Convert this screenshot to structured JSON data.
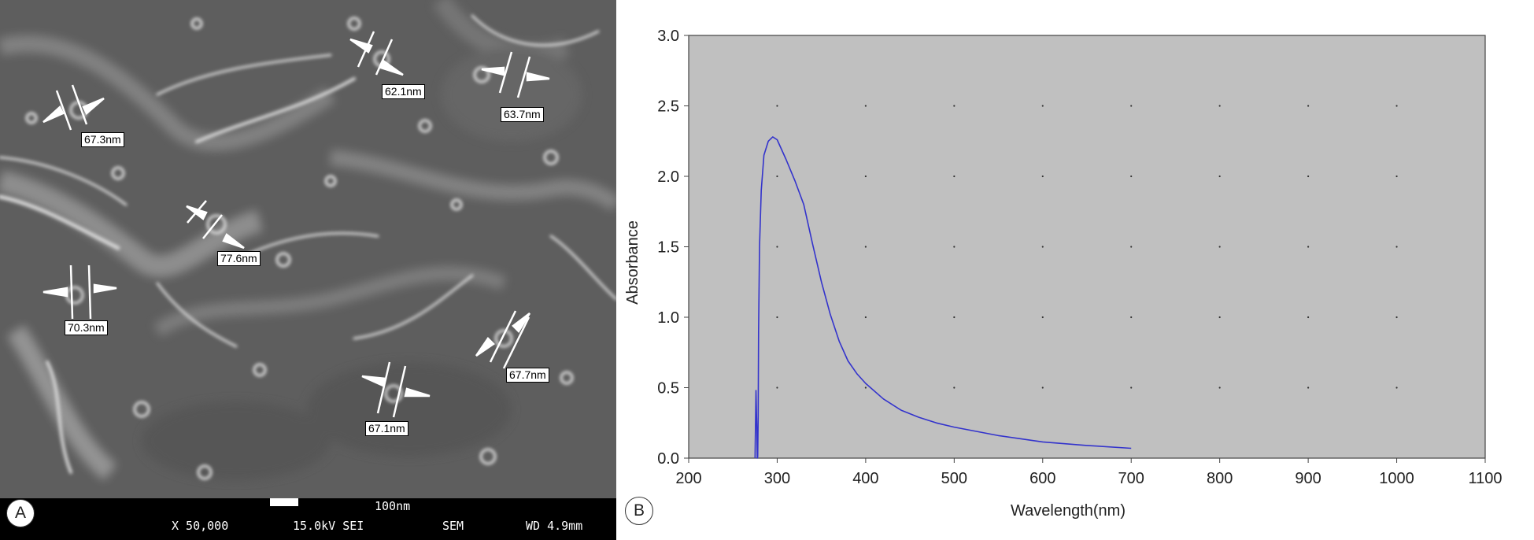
{
  "panel_a": {
    "letter": "A",
    "measurements": [
      {
        "label": "62.1nm"
      },
      {
        "label": "63.7nm"
      },
      {
        "label": "67.3nm"
      },
      {
        "label": "77.6nm"
      },
      {
        "label": "70.3nm"
      },
      {
        "label": "67.7nm"
      },
      {
        "label": "67.1nm"
      }
    ],
    "info_bar": {
      "magnification": "X 50,000",
      "voltage": "15.0kV SEI",
      "mode": "SEM",
      "scale": "100nm",
      "working_distance": "WD 4.9mm"
    }
  },
  "panel_b": {
    "letter": "B"
  },
  "chart_data": {
    "type": "line",
    "xlabel": "Wavelength(nm)",
    "ylabel": "Absorbance",
    "xlim": [
      200,
      1100
    ],
    "ylim": [
      0,
      3.0
    ],
    "x_ticks": [
      200,
      300,
      400,
      500,
      600,
      700,
      800,
      900,
      1000,
      1100
    ],
    "y_ticks": [
      "0.0",
      "0.5",
      "1.0",
      "1.5",
      "2.0",
      "2.5",
      "3.0"
    ],
    "grid": "dotted",
    "plot_background": "#c0c0c0",
    "series": [
      {
        "color": "#3333cc",
        "x": [
          275,
          276,
          277,
          277.5,
          278,
          278.5,
          279,
          280,
          282,
          285,
          290,
          295,
          300,
          310,
          320,
          330,
          340,
          350,
          360,
          370,
          380,
          390,
          400,
          420,
          440,
          460,
          480,
          500,
          550,
          600,
          650,
          700
        ],
        "y": [
          0.0,
          0.48,
          0.2,
          0.0,
          0.01,
          0.3,
          0.9,
          1.5,
          1.9,
          2.15,
          2.25,
          2.28,
          2.26,
          2.12,
          1.97,
          1.8,
          1.52,
          1.25,
          1.02,
          0.83,
          0.69,
          0.6,
          0.53,
          0.42,
          0.34,
          0.29,
          0.25,
          0.22,
          0.16,
          0.115,
          0.09,
          0.07
        ]
      }
    ]
  }
}
